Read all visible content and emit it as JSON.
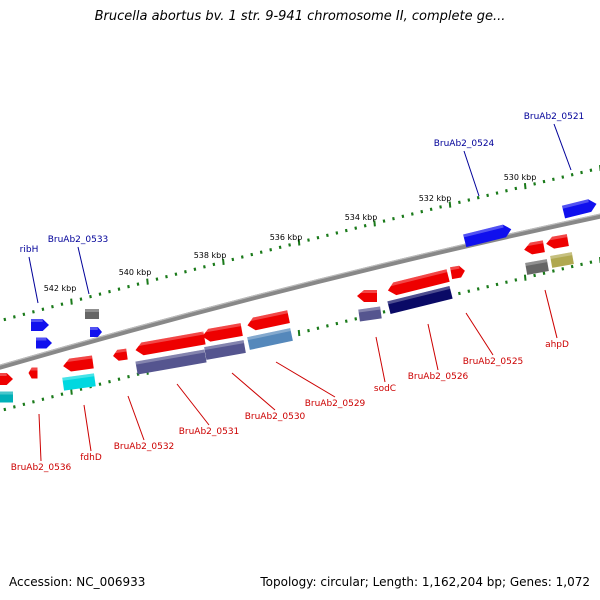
{
  "title": "Brucella abortus bv. 1 str. 9-941 chromosome II, complete ge...",
  "accession_label": "Accession: NC_006933",
  "summary_label": "Topology: circular; Length: 1,162,204 bp; Genes: 1,072",
  "colors": {
    "backbone": "#888888",
    "tick": "#1a7a1a",
    "gene_red": "#ee0000",
    "gene_blue": "#1010ee",
    "gene_gray": "#666666",
    "gene_navy": "#0a0a66",
    "gene_slate": "#55558f",
    "gene_steel": "#5588bb",
    "gene_cyan": "#00d8e0",
    "gene_teal": "#00b0b8",
    "gene_olive": "#b0a850",
    "label_red": "#cc0000",
    "label_blue": "#000099"
  },
  "scale_labels": [
    "530 kbp",
    "532 kbp",
    "534 kbp",
    "536 kbp",
    "538 kbp",
    "540 kbp",
    "542 kbp"
  ],
  "gene_labels": [
    "BruAb2_0521",
    "BruAb2_0524",
    "BruAb2_0533",
    "ribH",
    "ahpD",
    "BruAb2_0525",
    "BruAb2_0526",
    "sodC",
    "BruAb2_0529",
    "BruAb2_0530",
    "BruAb2_0531",
    "BruAb2_0532",
    "fdhD",
    "BruAb2_0536"
  ]
}
